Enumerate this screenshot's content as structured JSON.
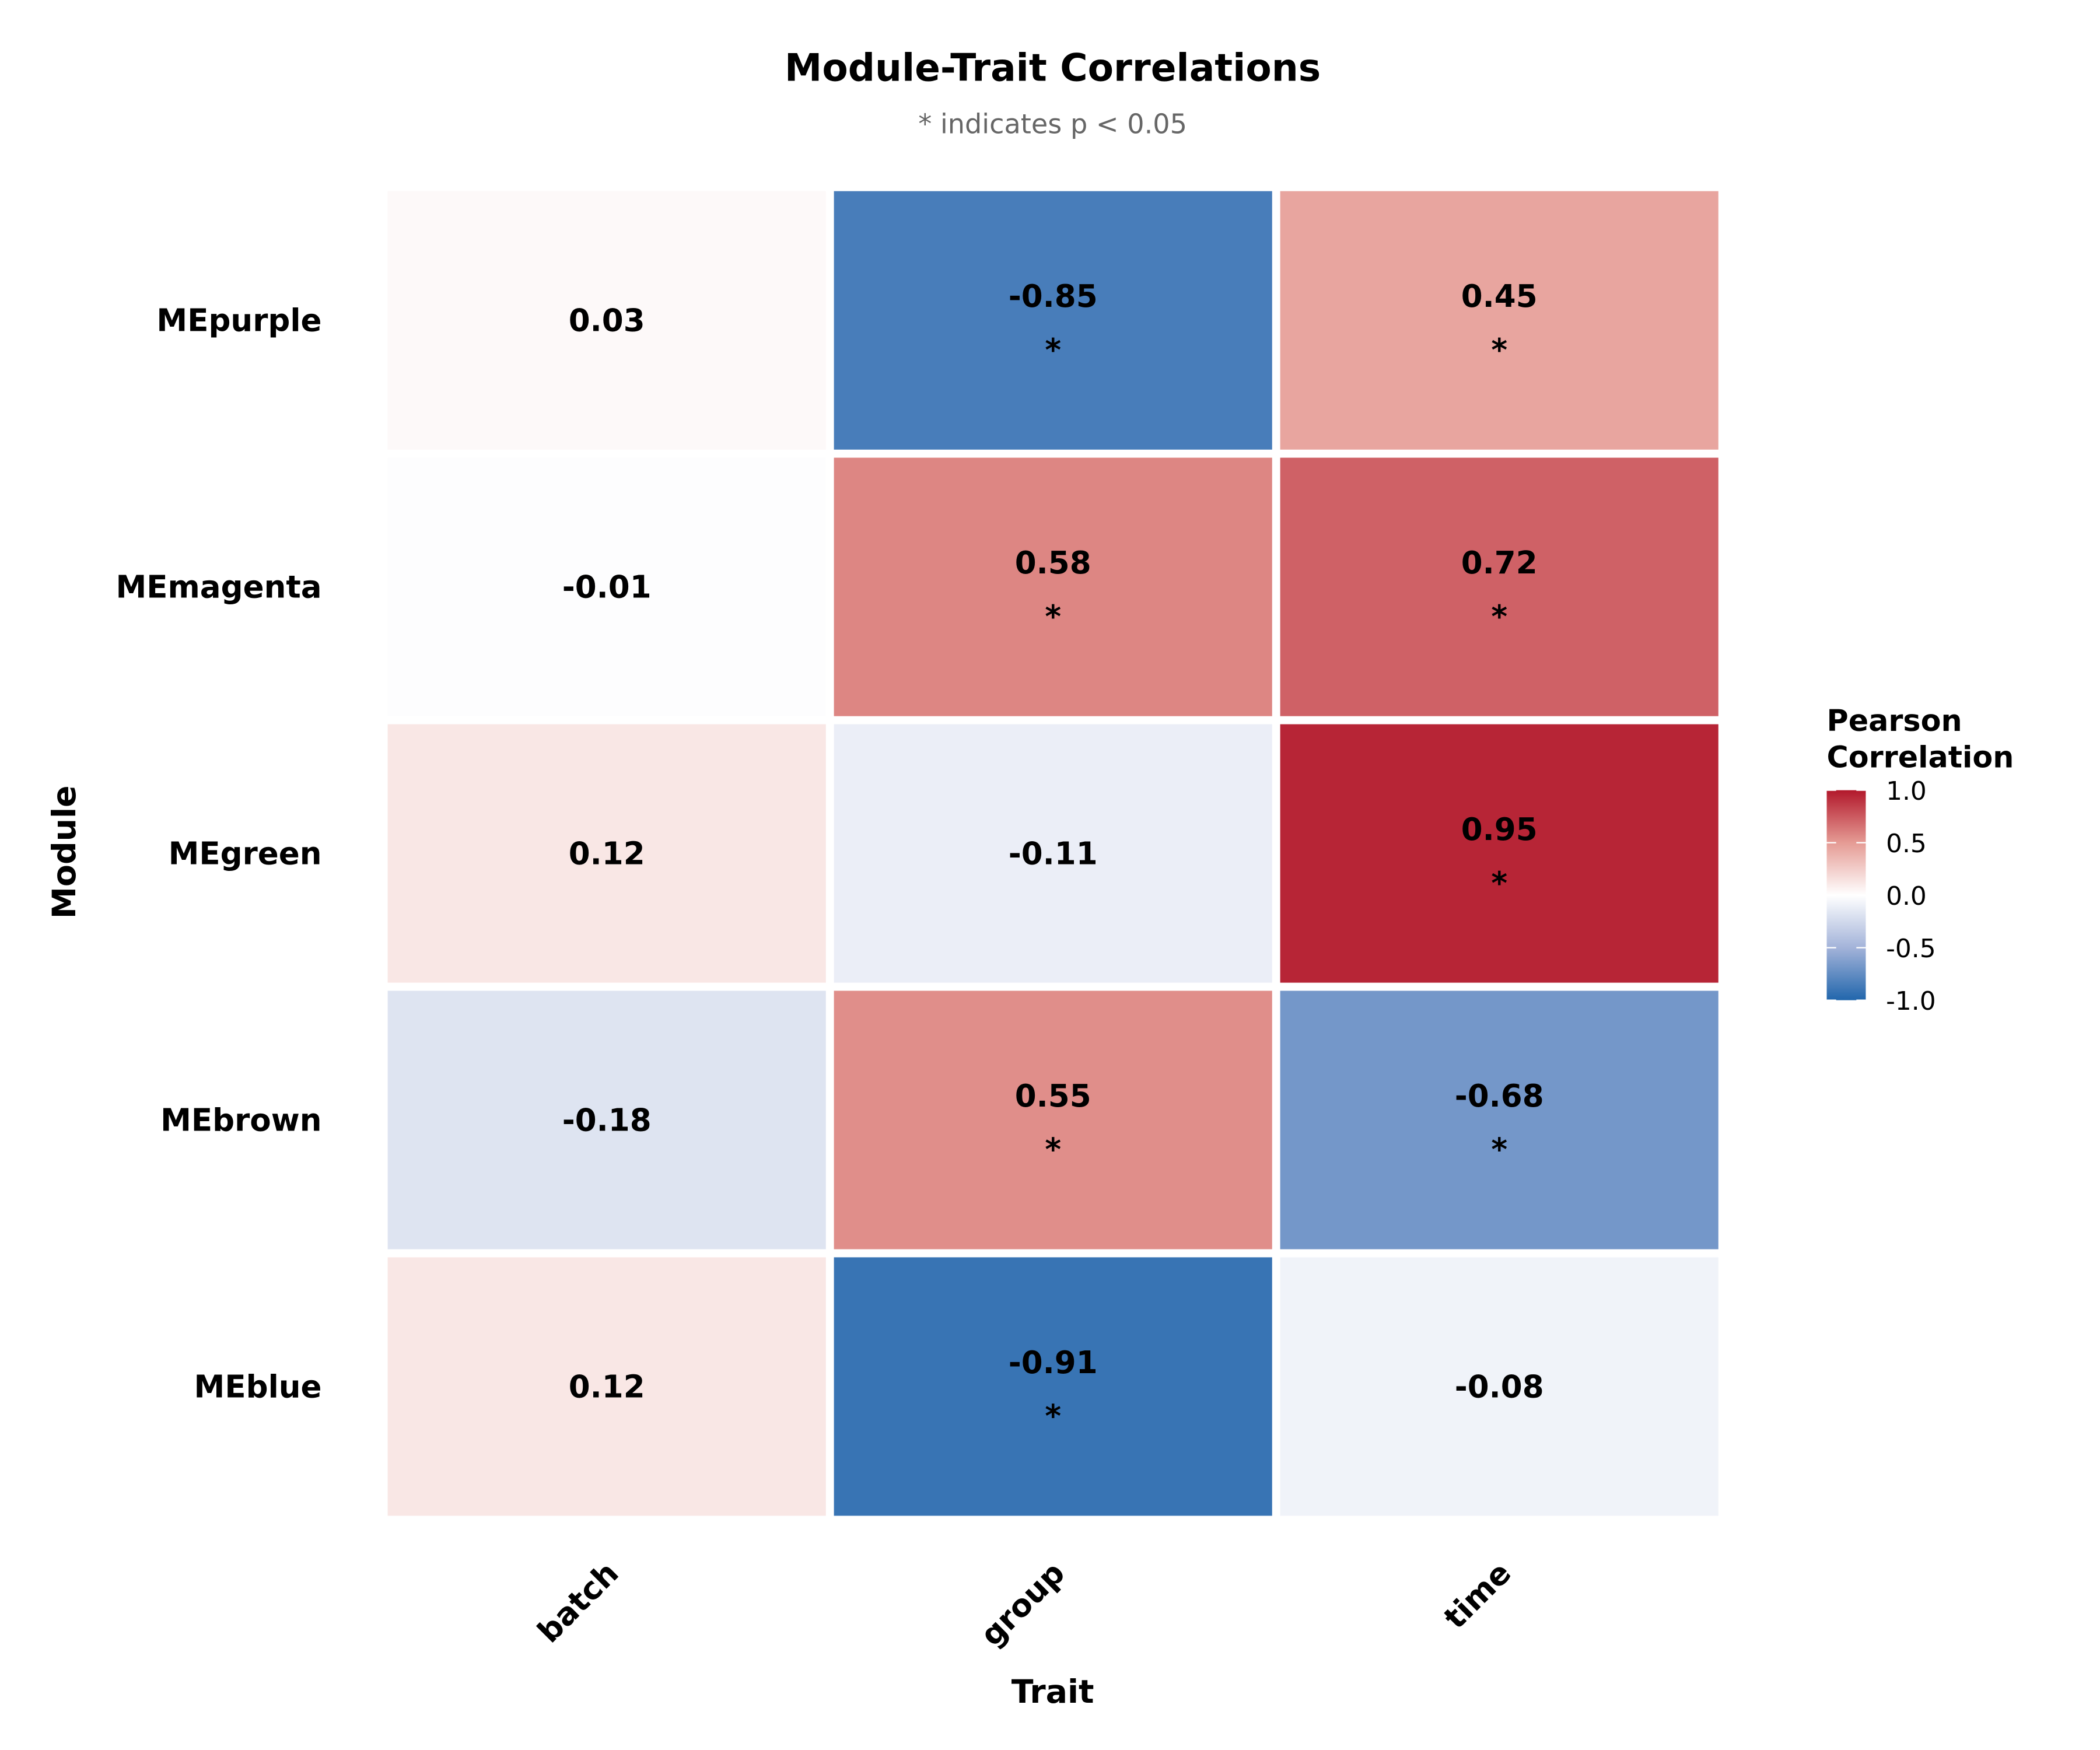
{
  "chart_data": {
    "type": "heatmap",
    "title": "Module-Trait Correlations",
    "subtitle": "* indicates p < 0.05",
    "xlabel": "Trait",
    "ylabel": "Module",
    "x_categories": [
      "batch",
      "group",
      "time"
    ],
    "y_categories": [
      "MEpurple",
      "MEmagenta",
      "MEgreen",
      "MEbrown",
      "MEblue"
    ],
    "values": [
      [
        0.03,
        -0.85,
        0.45
      ],
      [
        -0.01,
        0.58,
        0.72
      ],
      [
        0.12,
        -0.11,
        0.95
      ],
      [
        -0.18,
        0.55,
        -0.68
      ],
      [
        0.12,
        -0.91,
        -0.08
      ]
    ],
    "significant": [
      [
        false,
        true,
        true
      ],
      [
        false,
        true,
        true
      ],
      [
        false,
        false,
        true
      ],
      [
        false,
        true,
        true
      ],
      [
        false,
        true,
        false
      ]
    ],
    "significance_marker": "*",
    "value_labels": [
      [
        "0.03",
        "-0.85",
        "0.45"
      ],
      [
        "-0.01",
        "0.58",
        "0.72"
      ],
      [
        "0.12",
        "-0.11",
        "0.95"
      ],
      [
        "-0.18",
        "0.55",
        "-0.68"
      ],
      [
        "0.12",
        "-0.91",
        "-0.08"
      ]
    ],
    "legend": {
      "title_line1": "Pearson",
      "title_line2": "Correlation",
      "ticks": [
        "1.0",
        "0.5",
        "0.0",
        "-0.5",
        "-1.0"
      ],
      "range": [
        -1,
        1
      ],
      "placement": "right"
    },
    "colors": {
      "low": "#2166ac",
      "mid": "#ffffff",
      "high": "#b2182b"
    }
  }
}
